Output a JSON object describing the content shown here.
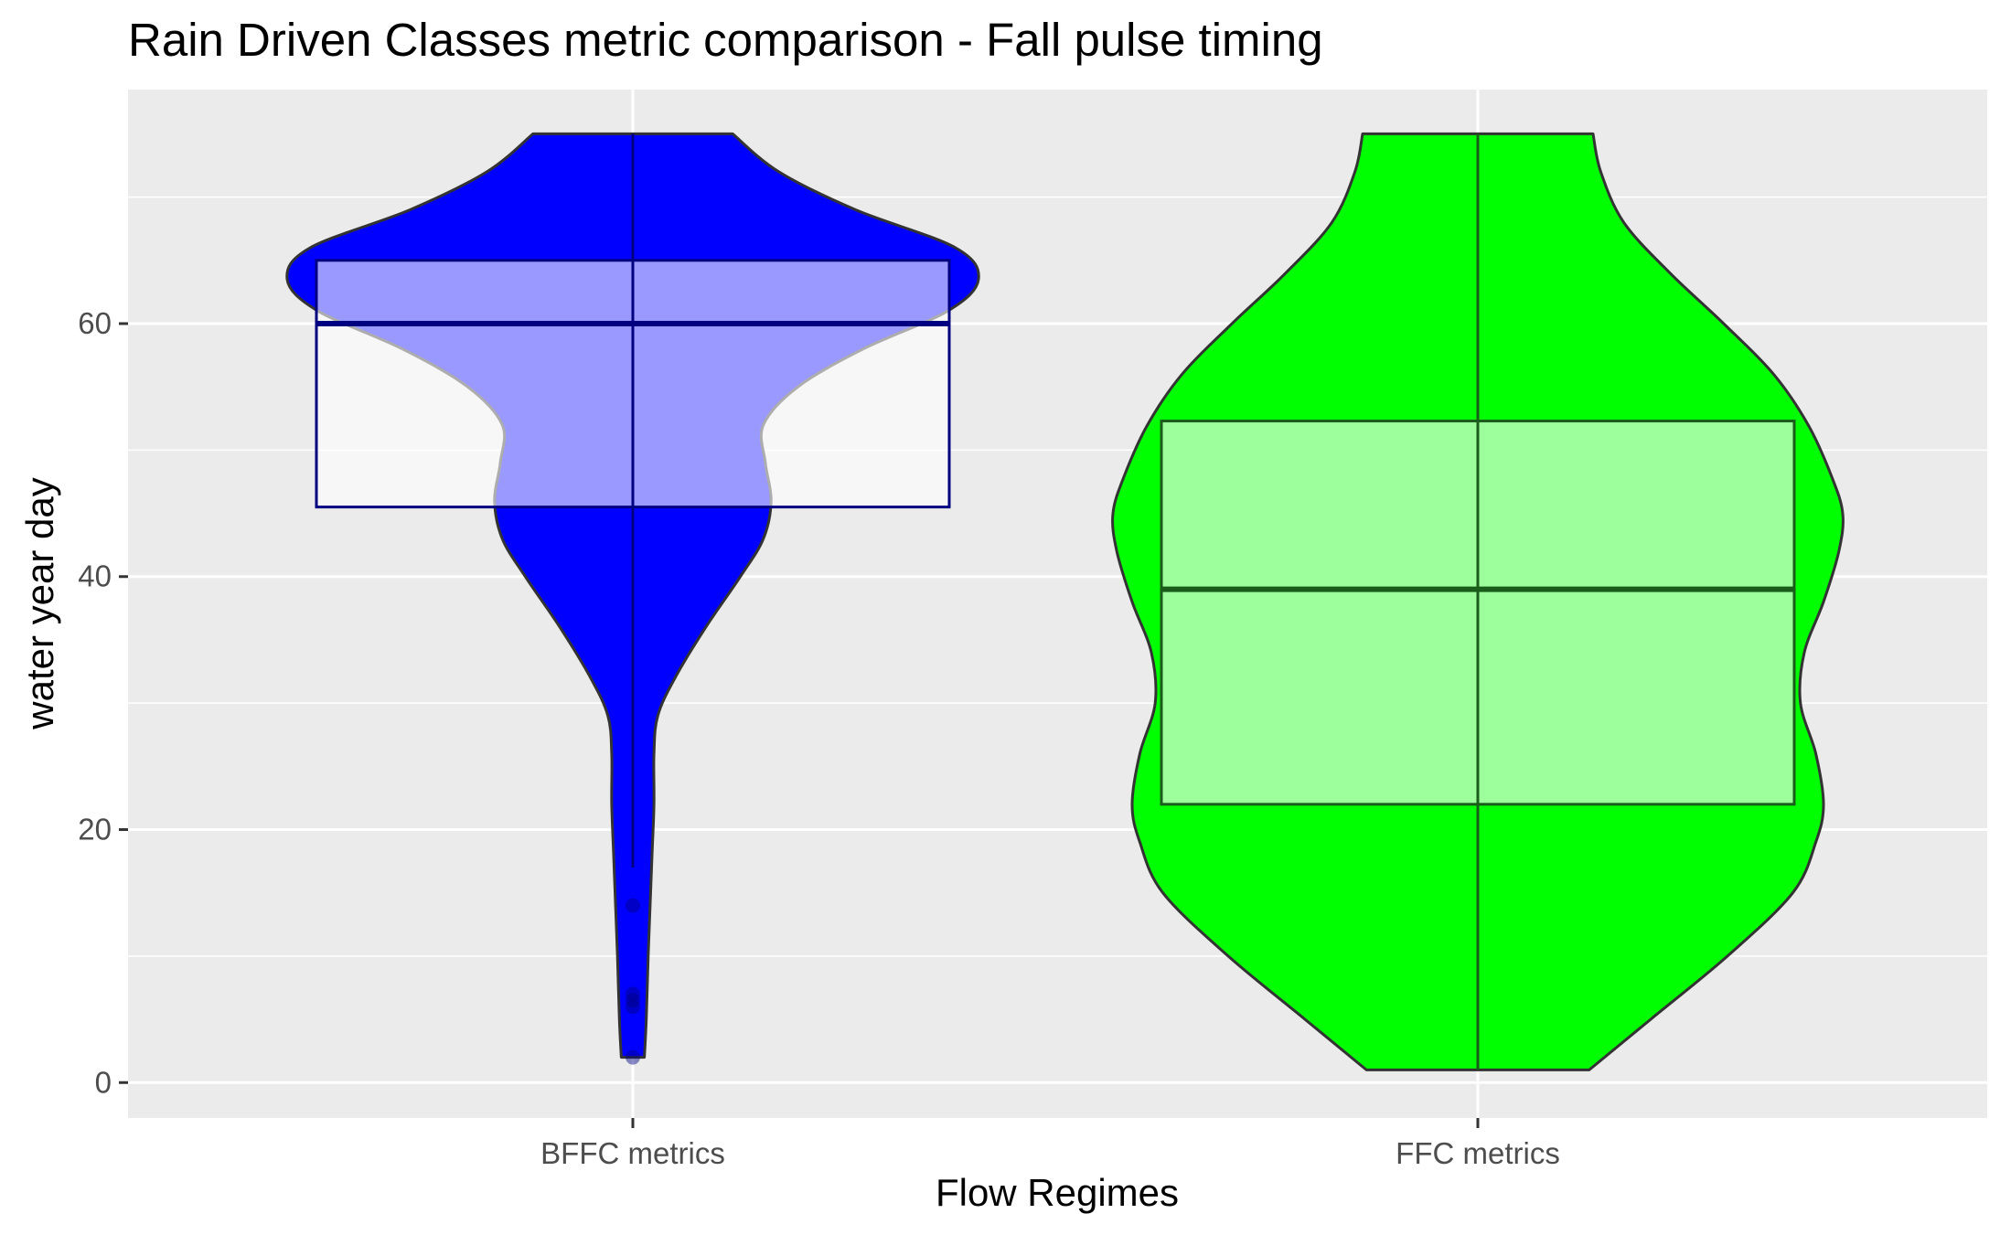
{
  "chart_data": {
    "type": "violin",
    "title": "Rain Driven Classes metric comparison - Fall pulse timing",
    "xlabel": "Flow Regimes",
    "ylabel": "water year day",
    "categories": [
      "BFFC metrics",
      "FFC metrics"
    ],
    "yticks": [
      0,
      20,
      40,
      60
    ],
    "ylim": [
      -2.8,
      78.5
    ],
    "grid": true,
    "background": "#ebebeb",
    "series": [
      {
        "category": "BFFC metrics",
        "fill": "#0000ff",
        "box_fill": "#ffffff",
        "box_outline": "#000080",
        "box": {
          "q1": 45.5,
          "median": 60,
          "q3": 65,
          "whisker_low": 17,
          "whisker_high": 75
        },
        "violin_range": [
          2,
          75
        ],
        "outliers": [
          2,
          6,
          6.5,
          7,
          14
        ],
        "violin_profile": [
          [
            2,
            0.03
          ],
          [
            5,
            0.035
          ],
          [
            10,
            0.04
          ],
          [
            14,
            0.045
          ],
          [
            18,
            0.05
          ],
          [
            22,
            0.055
          ],
          [
            26,
            0.055
          ],
          [
            29,
            0.065
          ],
          [
            32,
            0.11
          ],
          [
            36,
            0.19
          ],
          [
            40,
            0.28
          ],
          [
            43,
            0.34
          ],
          [
            46,
            0.36
          ],
          [
            49,
            0.345
          ],
          [
            52,
            0.34
          ],
          [
            55,
            0.43
          ],
          [
            58,
            0.6
          ],
          [
            61,
            0.82
          ],
          [
            63.5,
            0.9
          ],
          [
            66,
            0.84
          ],
          [
            69,
            0.58
          ],
          [
            72,
            0.38
          ],
          [
            75,
            0.26
          ]
        ]
      },
      {
        "category": "FFC metrics",
        "fill": "#00ff00",
        "box_fill": "#9cff9c",
        "box_outline": "#1a5c1a",
        "box": {
          "q1": 22,
          "median": 39,
          "q3": 52.3,
          "whisker_low": 1,
          "whisker_high": 75
        },
        "violin_range": [
          1,
          75
        ],
        "outliers": [],
        "violin_profile": [
          [
            1,
            0.29
          ],
          [
            5,
            0.45
          ],
          [
            10,
            0.65
          ],
          [
            15,
            0.82
          ],
          [
            19,
            0.88
          ],
          [
            22,
            0.9
          ],
          [
            26,
            0.88
          ],
          [
            30,
            0.84
          ],
          [
            34,
            0.85
          ],
          [
            38,
            0.9
          ],
          [
            42,
            0.94
          ],
          [
            45,
            0.95
          ],
          [
            48,
            0.92
          ],
          [
            52,
            0.86
          ],
          [
            56,
            0.77
          ],
          [
            60,
            0.64
          ],
          [
            64,
            0.5
          ],
          [
            68,
            0.38
          ],
          [
            72,
            0.32
          ],
          [
            75,
            0.3
          ]
        ]
      }
    ]
  }
}
